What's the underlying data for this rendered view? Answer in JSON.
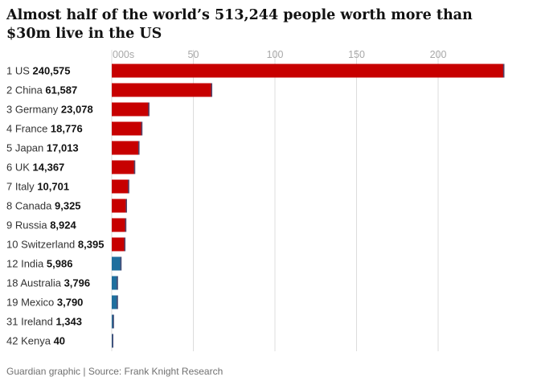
{
  "header": {
    "title": "Almost half of the world’s 513,244 people worth more than $30m live in the US"
  },
  "footer": {
    "source": "Guardian graphic | Source: Frank Knight Research"
  },
  "chart_data": {
    "type": "bar",
    "orientation": "horizontal",
    "title": "Almost half of the world’s 513,244 people worth more than $30m live in the US",
    "xlabel": "000s",
    "x_tick_labels": [
      "000s",
      "50",
      "100",
      "150",
      "200"
    ],
    "xlim": [
      0,
      240
    ],
    "grid": true,
    "colors": {
      "primary": "#c70000",
      "secondary": "#1f6f9e",
      "edge": "#4b4b73"
    },
    "rows": [
      {
        "rank": "1",
        "country": "US",
        "value_label": "240,575",
        "value": 240575,
        "group": "primary"
      },
      {
        "rank": "2",
        "country": "China",
        "value_label": "61,587",
        "value": 61587,
        "group": "primary"
      },
      {
        "rank": "3",
        "country": "Germany",
        "value_label": "23,078",
        "value": 23078,
        "group": "primary"
      },
      {
        "rank": "4",
        "country": "France",
        "value_label": "18,776",
        "value": 18776,
        "group": "primary"
      },
      {
        "rank": "5",
        "country": "Japan",
        "value_label": "17,013",
        "value": 17013,
        "group": "primary"
      },
      {
        "rank": "6",
        "country": "UK",
        "value_label": "14,367",
        "value": 14367,
        "group": "primary"
      },
      {
        "rank": "7",
        "country": "Italy",
        "value_label": "10,701",
        "value": 10701,
        "group": "primary"
      },
      {
        "rank": "8",
        "country": "Canada",
        "value_label": "9,325",
        "value": 9325,
        "group": "primary"
      },
      {
        "rank": "9",
        "country": "Russia",
        "value_label": "8,924",
        "value": 8924,
        "group": "primary"
      },
      {
        "rank": "10",
        "country": "Switzerland",
        "value_label": "8,395",
        "value": 8395,
        "group": "primary"
      },
      {
        "rank": "12",
        "country": "India",
        "value_label": "5,986",
        "value": 5986,
        "group": "secondary"
      },
      {
        "rank": "18",
        "country": "Australia",
        "value_label": "3,796",
        "value": 3796,
        "group": "secondary"
      },
      {
        "rank": "19",
        "country": "Mexico",
        "value_label": "3,790",
        "value": 3790,
        "group": "secondary"
      },
      {
        "rank": "31",
        "country": "Ireland",
        "value_label": "1,343",
        "value": 1343,
        "group": "secondary"
      },
      {
        "rank": "42",
        "country": "Kenya",
        "value_label": "40",
        "value": 40,
        "group": "secondary"
      }
    ]
  }
}
